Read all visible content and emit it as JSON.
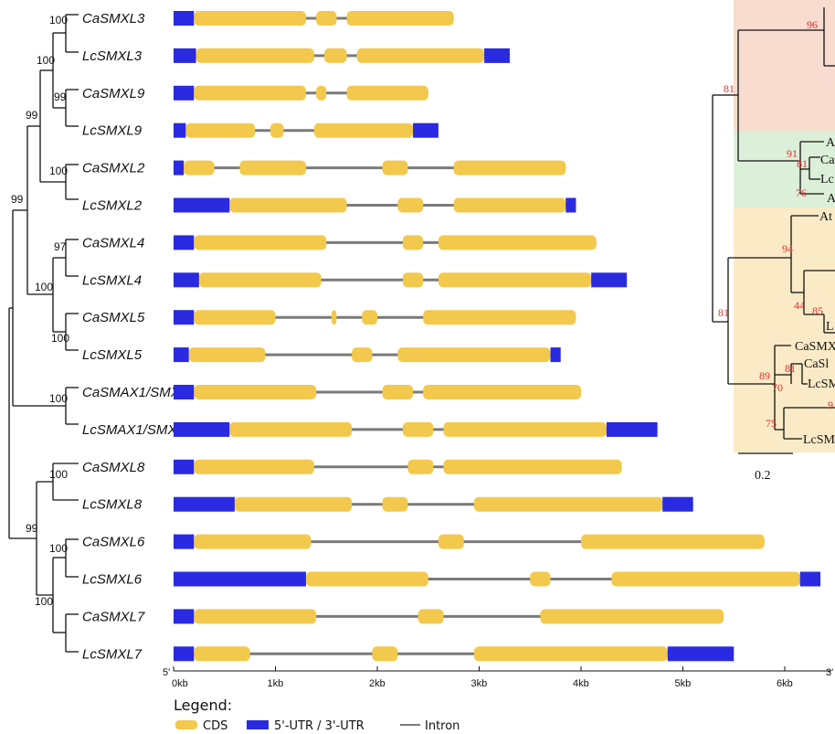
{
  "figure": {
    "axis": {
      "ticks": [
        "0kb",
        "1kb",
        "2kb",
        "3kb",
        "4kb",
        "5kb",
        "6kb"
      ],
      "end_5": "5'",
      "end_3": "3'"
    },
    "legend": {
      "title": "Legend:",
      "items": [
        {
          "label": "CDS",
          "color": "#f2c94c"
        },
        {
          "label": "5'-UTR / 3'-UTR",
          "color": "#2a2ae0"
        },
        {
          "label": "Intron",
          "color": "#7a7a7a"
        }
      ]
    },
    "gene_tree": {
      "bootstraps": [
        "100",
        "100",
        "99",
        "99",
        "100",
        "99",
        "97",
        "100",
        "100",
        "100",
        "100",
        "99",
        "100",
        "100"
      ]
    },
    "genes": [
      {
        "name": "CaSMXL3",
        "exons": [
          [
            0,
            0.2,
            "u"
          ],
          [
            0.2,
            1.3,
            "c"
          ],
          [
            1.4,
            1.6,
            "c"
          ],
          [
            1.7,
            2.75,
            "c"
          ]
        ]
      },
      {
        "name": "LcSMXL3",
        "exons": [
          [
            0,
            0.22,
            "u"
          ],
          [
            0.22,
            1.38,
            "c"
          ],
          [
            1.48,
            1.7,
            "c"
          ],
          [
            1.8,
            3.05,
            "c"
          ],
          [
            3.05,
            3.3,
            "u"
          ]
        ]
      },
      {
        "name": "CaSMXL9",
        "exons": [
          [
            0,
            0.2,
            "u"
          ],
          [
            0.2,
            1.3,
            "c"
          ],
          [
            1.4,
            1.5,
            "c"
          ],
          [
            1.7,
            2.5,
            "c"
          ]
        ]
      },
      {
        "name": "LcSMXL9",
        "exons": [
          [
            0,
            0.12,
            "u"
          ],
          [
            0.12,
            0.8,
            "c"
          ],
          [
            0.95,
            1.08,
            "c"
          ],
          [
            1.38,
            2.35,
            "c"
          ],
          [
            2.35,
            2.6,
            "u"
          ]
        ]
      },
      {
        "name": "CaSMXL2",
        "exons": [
          [
            0,
            0.1,
            "u"
          ],
          [
            0.1,
            0.4,
            "c"
          ],
          [
            0.65,
            1.3,
            "c"
          ],
          [
            2.05,
            2.3,
            "c"
          ],
          [
            2.75,
            3.85,
            "c"
          ]
        ]
      },
      {
        "name": "LcSMXL2",
        "exons": [
          [
            0,
            0.55,
            "u"
          ],
          [
            0.55,
            1.7,
            "c"
          ],
          [
            2.2,
            2.45,
            "c"
          ],
          [
            2.75,
            3.85,
            "c"
          ],
          [
            3.85,
            3.95,
            "u"
          ]
        ]
      },
      {
        "name": "CaSMXL4",
        "exons": [
          [
            0,
            0.2,
            "u"
          ],
          [
            0.2,
            1.5,
            "c"
          ],
          [
            2.25,
            2.45,
            "c"
          ],
          [
            2.6,
            4.15,
            "c"
          ]
        ]
      },
      {
        "name": "LcSMXL4",
        "exons": [
          [
            0,
            0.25,
            "u"
          ],
          [
            0.25,
            1.45,
            "c"
          ],
          [
            2.25,
            2.45,
            "c"
          ],
          [
            2.6,
            4.1,
            "c"
          ],
          [
            4.1,
            4.45,
            "u"
          ]
        ]
      },
      {
        "name": "CaSMXL5",
        "exons": [
          [
            0,
            0.2,
            "u"
          ],
          [
            0.2,
            1.0,
            "c"
          ],
          [
            1.55,
            1.6,
            "c"
          ],
          [
            1.85,
            2.0,
            "c"
          ],
          [
            2.45,
            3.95,
            "c"
          ]
        ]
      },
      {
        "name": "LcSMXL5",
        "exons": [
          [
            0,
            0.15,
            "u"
          ],
          [
            0.15,
            0.9,
            "c"
          ],
          [
            1.75,
            1.95,
            "c"
          ],
          [
            2.2,
            3.7,
            "c"
          ],
          [
            3.7,
            3.8,
            "u"
          ]
        ]
      },
      {
        "name": "CaSMAX1/SMXL1",
        "exons": [
          [
            0,
            0.2,
            "u"
          ],
          [
            0.2,
            1.4,
            "c"
          ],
          [
            2.05,
            2.35,
            "c"
          ],
          [
            2.45,
            4.0,
            "c"
          ]
        ]
      },
      {
        "name": "LcSMAX1/SMXL1",
        "exons": [
          [
            0,
            0.55,
            "u"
          ],
          [
            0.55,
            1.75,
            "c"
          ],
          [
            2.25,
            2.55,
            "c"
          ],
          [
            2.65,
            4.25,
            "c"
          ],
          [
            4.25,
            4.75,
            "u"
          ]
        ]
      },
      {
        "name": "CaSMXL8",
        "exons": [
          [
            0,
            0.2,
            "u"
          ],
          [
            0.2,
            1.38,
            "c"
          ],
          [
            2.3,
            2.55,
            "c"
          ],
          [
            2.65,
            4.4,
            "c"
          ]
        ]
      },
      {
        "name": "LcSMXL8",
        "exons": [
          [
            0,
            0.6,
            "u"
          ],
          [
            0.6,
            1.75,
            "c"
          ],
          [
            2.05,
            2.3,
            "c"
          ],
          [
            2.95,
            4.8,
            "c"
          ],
          [
            4.8,
            5.1,
            "u"
          ]
        ]
      },
      {
        "name": "CaSMXL6",
        "exons": [
          [
            0,
            0.2,
            "u"
          ],
          [
            0.2,
            1.35,
            "c"
          ],
          [
            2.6,
            2.85,
            "c"
          ],
          [
            4.0,
            5.8,
            "c"
          ]
        ]
      },
      {
        "name": "LcSMXL6",
        "exons": [
          [
            0,
            1.3,
            "u"
          ],
          [
            1.3,
            2.5,
            "c"
          ],
          [
            3.5,
            3.7,
            "c"
          ],
          [
            4.3,
            6.15,
            "c"
          ],
          [
            6.15,
            6.35,
            "u"
          ]
        ]
      },
      {
        "name": "CaSMXL7",
        "exons": [
          [
            0,
            0.2,
            "u"
          ],
          [
            0.2,
            1.4,
            "c"
          ],
          [
            2.4,
            2.65,
            "c"
          ],
          [
            3.6,
            5.4,
            "c"
          ]
        ]
      },
      {
        "name": "LcSMXL7",
        "exons": [
          [
            0,
            0.2,
            "u"
          ],
          [
            0.2,
            0.75,
            "c"
          ],
          [
            1.95,
            2.2,
            "c"
          ],
          [
            2.95,
            4.85,
            "c"
          ],
          [
            4.85,
            5.5,
            "u"
          ]
        ]
      }
    ],
    "right_tree": {
      "support_values": [
        "96",
        "81",
        "91",
        "81",
        "76",
        "94",
        "44",
        "85",
        "81",
        "89",
        "81",
        "70",
        "9",
        "75"
      ],
      "leaf_labels": [
        "A",
        "Ca",
        "Lc",
        "A",
        "At",
        "L",
        "CaSMX",
        "CaSl",
        "LcSM",
        "LcSM"
      ],
      "scale_label": "0.2",
      "clade_colors": [
        "#f7dccf",
        "#dcefd8",
        "#fbeac6"
      ]
    }
  }
}
